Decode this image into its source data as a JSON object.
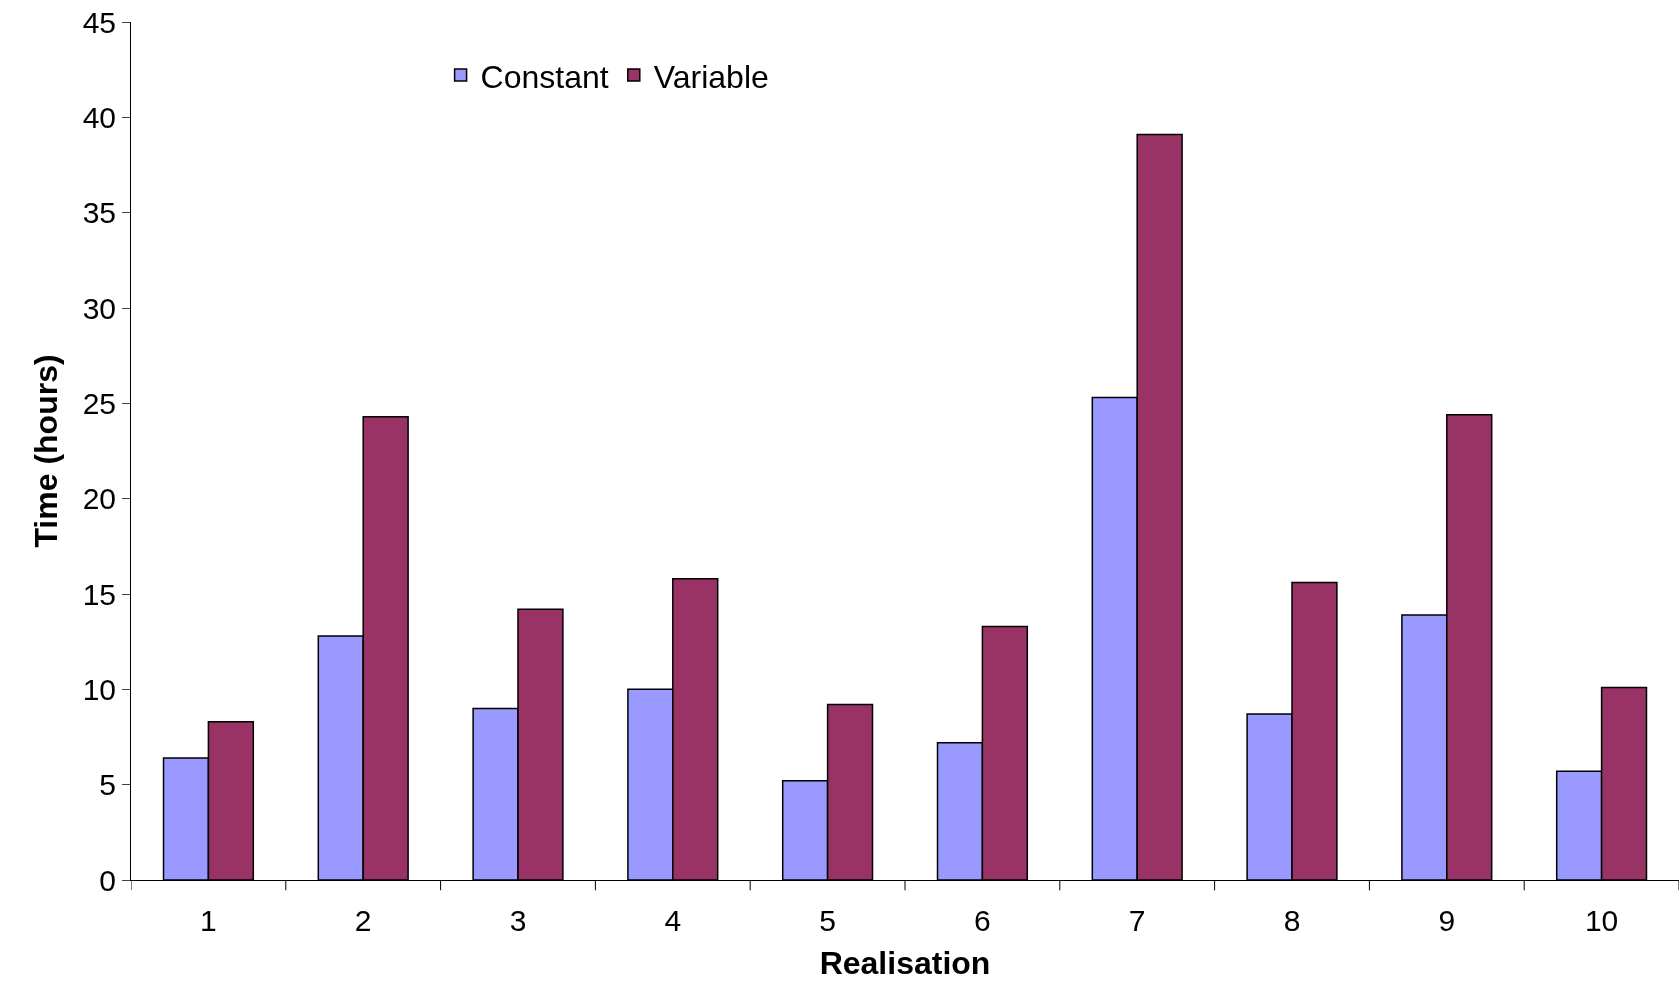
{
  "chart_data": {
    "type": "bar",
    "xlabel": "Realisation",
    "ylabel": "Time (hours)",
    "categories": [
      "1",
      "2",
      "3",
      "4",
      "5",
      "6",
      "7",
      "8",
      "9",
      "10"
    ],
    "series": [
      {
        "name": "Constant",
        "color": "#9999ff",
        "values": [
          6.4,
          12.8,
          9.0,
          10.0,
          5.2,
          7.2,
          25.3,
          8.7,
          13.9,
          5.7
        ]
      },
      {
        "name": "Variable",
        "color": "#993366",
        "values": [
          8.3,
          24.3,
          14.2,
          15.8,
          9.2,
          13.3,
          39.1,
          15.6,
          24.4,
          10.1
        ]
      }
    ],
    "ylim": [
      0,
      45
    ],
    "yticks": [
      0,
      5,
      10,
      15,
      20,
      25,
      30,
      35,
      40,
      45
    ],
    "legend": "top left"
  }
}
